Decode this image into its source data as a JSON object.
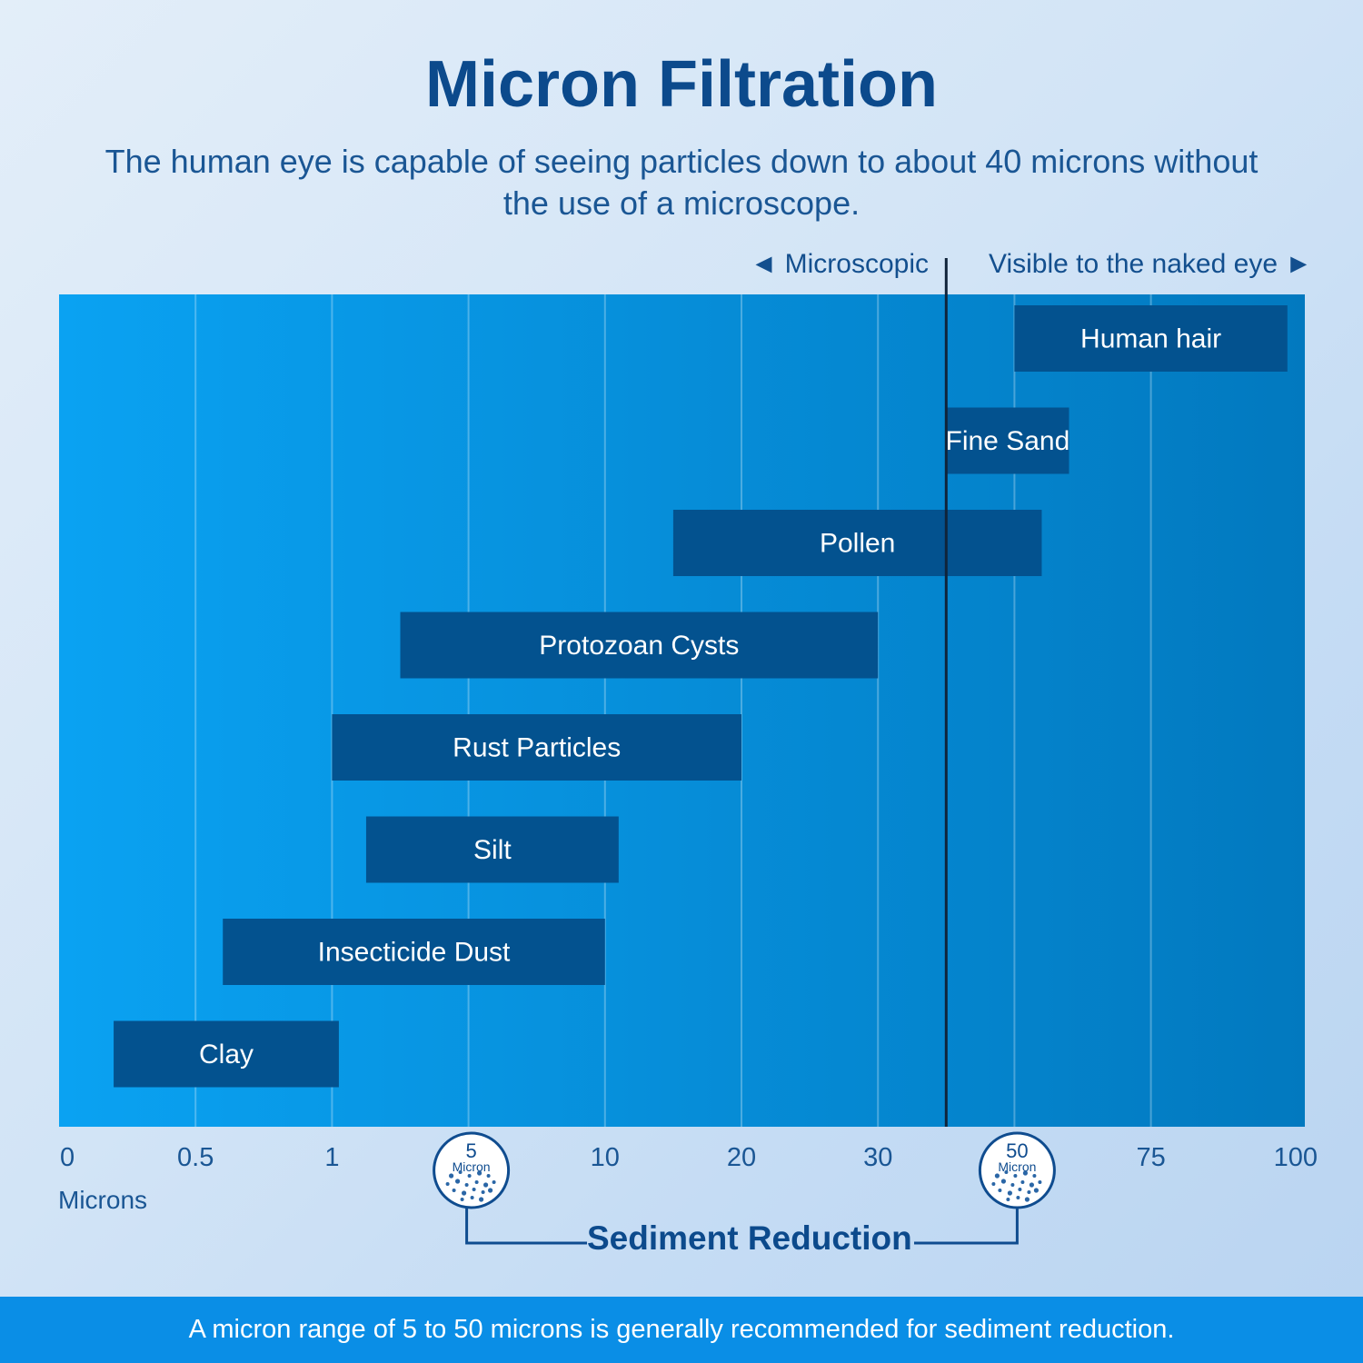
{
  "header": {
    "title": "Micron Filtration",
    "subtitle": "The human eye is capable of seeing particles down to about 40 microns without the use of a microscope."
  },
  "regions": {
    "microscopic": "◄ Microscopic",
    "visible": "Visible to the naked eye ►"
  },
  "chart_data": {
    "type": "bar",
    "orientation": "horizontal-range",
    "xlabel": "Microns",
    "x_ticks": [
      "0",
      "0.5",
      "1",
      "5",
      "10",
      "20",
      "30",
      "50",
      "75",
      "100"
    ],
    "x_scale": "categorical-nonlinear",
    "threshold": {
      "value": 40,
      "note": "visibility limit"
    },
    "series": [
      {
        "label": "Human hair",
        "start": 50,
        "end": 100
      },
      {
        "label": "Fine Sand",
        "start": 40,
        "end": 60
      },
      {
        "label": "Pollen",
        "start": 15,
        "end": 55
      },
      {
        "label": "Protozoan Cysts",
        "start": 3,
        "end": 30
      },
      {
        "label": "Rust Particles",
        "start": 1,
        "end": 20
      },
      {
        "label": "Silt",
        "start": 2,
        "end": 11
      },
      {
        "label": "Insecticide Dust",
        "start": 0.6,
        "end": 10
      },
      {
        "label": "Clay",
        "start": 0.2,
        "end": 1.2
      }
    ],
    "colors": {
      "bar": "#03528f",
      "band_light": "#0aa2f2",
      "band_dark": "#0279bf",
      "threshold": "#10243a"
    }
  },
  "sediment": {
    "low_value": "5",
    "high_value": "50",
    "unit": "Micron",
    "label": "Sediment Reduction"
  },
  "footer": {
    "text": "A micron range of 5 to 50 microns is generally recommended for sediment reduction."
  }
}
